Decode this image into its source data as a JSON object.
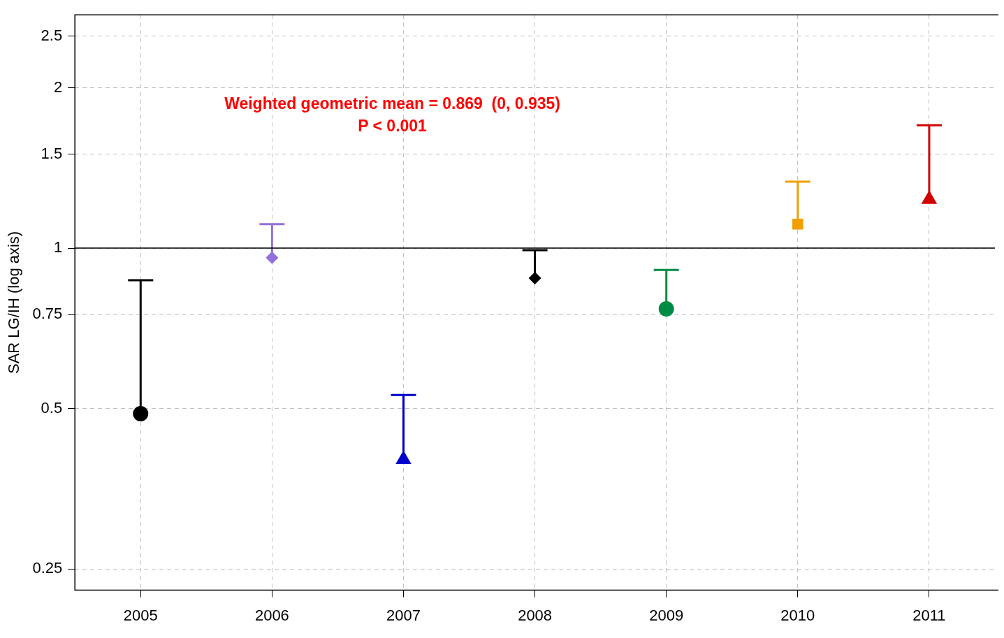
{
  "chart_data": {
    "type": "scatter",
    "ylabel": "SAR LG/IH (log axis)",
    "log": "y",
    "grid": true,
    "legend": false,
    "categories": [
      "2005",
      "2006",
      "2007",
      "2008",
      "2009",
      "2010",
      "2011"
    ],
    "ylim": [
      0.228,
      2.74
    ],
    "yticks": [
      0.25,
      0.5,
      0.75,
      1,
      1.5,
      2,
      2.5
    ],
    "series": [
      {
        "color": "#000000",
        "marker": "circle",
        "values": [
          0.489,
          null,
          null,
          null,
          null,
          null,
          null
        ],
        "errors": [
          [
            0.489,
            0.87
          ],
          null,
          null,
          null,
          null,
          null,
          null
        ]
      },
      {
        "color": "#9370db",
        "marker": "diamond",
        "values": [
          null,
          0.959,
          null,
          null,
          null,
          null,
          null
        ],
        "errors": [
          null,
          [
            0.959,
            1.109
          ],
          null,
          null,
          null,
          null,
          null
        ]
      },
      {
        "color": "#0000cd",
        "marker": "triangle",
        "values": [
          null,
          null,
          0.401,
          null,
          null,
          null,
          null
        ],
        "errors": [
          null,
          null,
          [
            0.401,
            0.53
          ],
          null,
          null,
          null,
          null
        ]
      },
      {
        "color": "#000000",
        "marker": "diamond",
        "values": [
          null,
          null,
          null,
          0.878,
          null,
          null,
          null
        ],
        "errors": [
          null,
          null,
          null,
          [
            0.878,
            0.991
          ],
          null,
          null,
          null
        ]
      },
      {
        "color": "#008b45",
        "marker": "circle",
        "values": [
          null,
          null,
          null,
          null,
          0.769,
          null,
          null
        ],
        "errors": [
          null,
          null,
          null,
          null,
          [
            0.769,
            0.91
          ],
          null,
          null
        ]
      },
      {
        "color": "#f0a000",
        "marker": "square",
        "values": [
          null,
          null,
          null,
          null,
          null,
          1.109,
          null
        ],
        "errors": [
          null,
          null,
          null,
          null,
          null,
          [
            1.109,
            1.332
          ],
          null
        ]
      },
      {
        "color": "#d00000",
        "marker": "triangle",
        "values": [
          null,
          null,
          null,
          null,
          null,
          null,
          1.234
        ],
        "errors": [
          null,
          null,
          null,
          null,
          null,
          null,
          [
            1.234,
            1.7
          ]
        ]
      }
    ],
    "ref_lines": [
      {
        "axis": "y",
        "value": 1,
        "color": "#000000"
      }
    ],
    "annotations": [
      "Weighted geometric mean = 0.869  (0, 0.935)",
      "P < 0.001"
    ]
  }
}
